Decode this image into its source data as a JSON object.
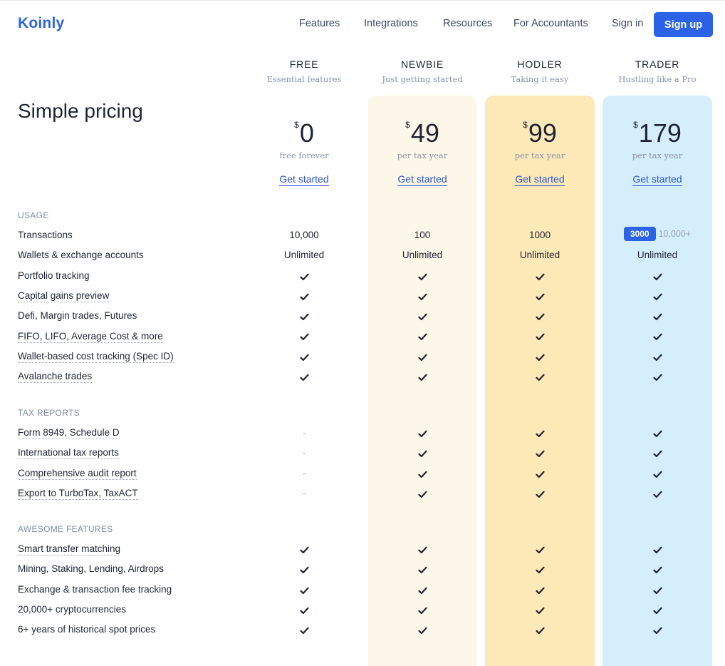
{
  "header": {
    "logo": "Koinly",
    "nav": [
      "Features",
      "Integrations",
      "Resources",
      "For Accountants"
    ],
    "sign_in": "Sign in",
    "sign_up": "Sign up"
  },
  "title": "Simple pricing",
  "plans": [
    {
      "name": "FREE",
      "subtitle": "Essential features",
      "currency": "$",
      "price": "0",
      "period": "free forever",
      "cta": "Get started",
      "bg": "#ffffff"
    },
    {
      "name": "NEWBIE",
      "subtitle": "Just getting started",
      "currency": "$",
      "price": "49",
      "period": "per tax year",
      "cta": "Get started",
      "bg": "#fcf7e8"
    },
    {
      "name": "HODLER",
      "subtitle": "Taking it easy",
      "currency": "$",
      "price": "99",
      "period": "per tax year",
      "cta": "Get started",
      "bg": "#fde8b8"
    },
    {
      "name": "TRADER",
      "subtitle": "Hustling like a Pro",
      "currency": "$",
      "price": "179",
      "period": "per tax year",
      "cta": "Get started",
      "bg": "#d4eefb"
    }
  ],
  "sections": [
    {
      "title": "USAGE",
      "rows": [
        {
          "label": "Transactions",
          "dotted": false,
          "values": [
            "10,000",
            "100",
            "1000",
            {
              "badge": "3000",
              "extra": "10,000+"
            }
          ]
        },
        {
          "label": "Wallets & exchange accounts",
          "dotted": false,
          "values": [
            "Unlimited",
            "Unlimited",
            "Unlimited",
            "Unlimited"
          ]
        },
        {
          "label": "Portfolio tracking",
          "dotted": false,
          "values": [
            "check",
            "check",
            "check",
            "check"
          ]
        },
        {
          "label": "Capital gains preview",
          "dotted": true,
          "values": [
            "check",
            "check",
            "check",
            "check"
          ]
        },
        {
          "label": "Defi, Margin trades, Futures",
          "dotted": false,
          "values": [
            "check",
            "check",
            "check",
            "check"
          ]
        },
        {
          "label": "FIFO, LIFO, Average Cost & more",
          "dotted": true,
          "values": [
            "check",
            "check",
            "check",
            "check"
          ]
        },
        {
          "label": "Wallet-based cost tracking (Spec ID)",
          "dotted": true,
          "values": [
            "check",
            "check",
            "check",
            "check"
          ]
        },
        {
          "label": "Avalanche trades",
          "dotted": true,
          "values": [
            "check",
            "check",
            "check",
            "check"
          ]
        }
      ]
    },
    {
      "title": "TAX REPORTS",
      "rows": [
        {
          "label": "Form 8949, Schedule D",
          "dotted": true,
          "values": [
            "-",
            "check",
            "check",
            "check"
          ]
        },
        {
          "label": "International tax reports",
          "dotted": true,
          "values": [
            "-",
            "check",
            "check",
            "check"
          ]
        },
        {
          "label": "Comprehensive audit report",
          "dotted": true,
          "values": [
            "-",
            "check",
            "check",
            "check"
          ]
        },
        {
          "label": "Export to TurboTax, TaxACT",
          "dotted": true,
          "values": [
            "-",
            "check",
            "check",
            "check"
          ]
        }
      ]
    },
    {
      "title": "AWESOME FEATURES",
      "rows": [
        {
          "label": "Smart transfer matching",
          "dotted": true,
          "values": [
            "check",
            "check",
            "check",
            "check"
          ]
        },
        {
          "label": "Mining, Staking, Lending, Airdrops",
          "dotted": false,
          "values": [
            "check",
            "check",
            "check",
            "check"
          ]
        },
        {
          "label": "Exchange & transaction fee tracking",
          "dotted": false,
          "values": [
            "check",
            "check",
            "check",
            "check"
          ]
        },
        {
          "label": "20,000+ cryptocurrencies",
          "dotted": false,
          "values": [
            "check",
            "check",
            "check",
            "check"
          ]
        },
        {
          "label": "6+ years of historical spot prices",
          "dotted": false,
          "values": [
            "check",
            "check",
            "check",
            "check"
          ]
        }
      ]
    }
  ]
}
